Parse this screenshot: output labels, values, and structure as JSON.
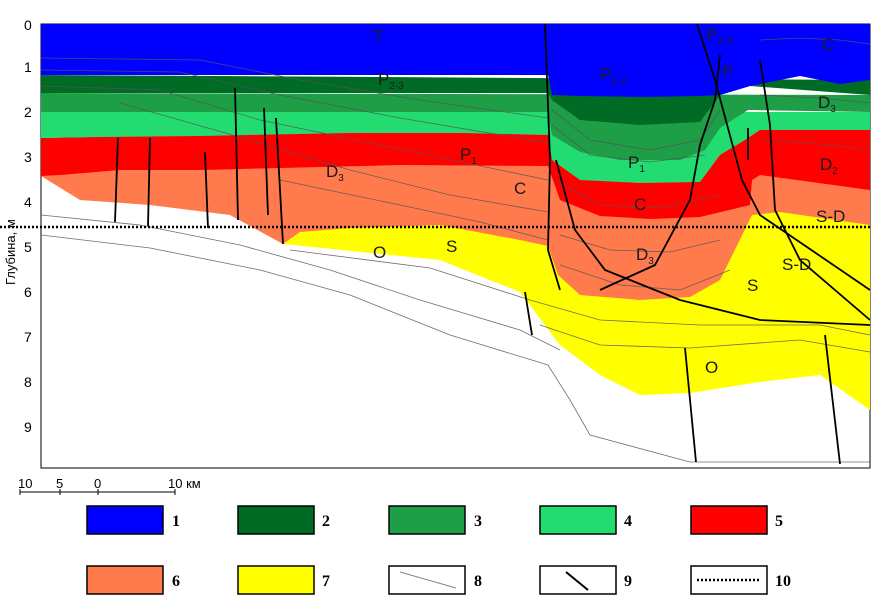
{
  "axis": {
    "title": "Глубина, м",
    "ticks": [
      "0",
      "1",
      "2",
      "3",
      "4",
      "5",
      "6",
      "7",
      "8",
      "9"
    ]
  },
  "scale_bar": {
    "labels": [
      "10",
      "5",
      "0",
      "10 км"
    ]
  },
  "units": {
    "T": "T",
    "P23_left": "P",
    "P23_left_sub": "2-3",
    "P23_center": "P",
    "P23_center_sub": "2-3",
    "P23_right": "P",
    "P23_right_sub": "2-3",
    "P_right2": "P",
    "C_top_right": "C",
    "D3_right": "D",
    "D3_right_sub": "3",
    "D2_right": "D",
    "D2_right_sub": "2",
    "P1_left": "P",
    "P1_left_sub": "1",
    "P1_center": "P",
    "P1_center_sub": "1",
    "D3_left": "D",
    "D3_left_sub": "3",
    "C_left": "C",
    "C_center": "C",
    "SD_right": "S-D",
    "O_left": "O",
    "S_left": "S",
    "D3_center": "D",
    "D3_center_sub": "3",
    "SD_center": "S-D",
    "S_right": "S",
    "O_bottom": "O"
  },
  "legend": [
    {
      "number": "1",
      "color": "#0000ff",
      "kind": "fill"
    },
    {
      "number": "2",
      "color": "#006b24",
      "kind": "fill"
    },
    {
      "number": "3",
      "color": "#1e9e46",
      "kind": "fill"
    },
    {
      "number": "4",
      "color": "#22dc72",
      "kind": "fill"
    },
    {
      "number": "5",
      "color": "#ff0000",
      "kind": "fill"
    },
    {
      "number": "6",
      "color": "#ff7a4d",
      "kind": "fill"
    },
    {
      "number": "7",
      "color": "#ffff00",
      "kind": "fill"
    },
    {
      "number": "8",
      "color": "#888888",
      "kind": "thin-line"
    },
    {
      "number": "9",
      "color": "#000000",
      "kind": "fault-line"
    },
    {
      "number": "10",
      "color": "#000000",
      "kind": "dotted-line"
    }
  ]
}
